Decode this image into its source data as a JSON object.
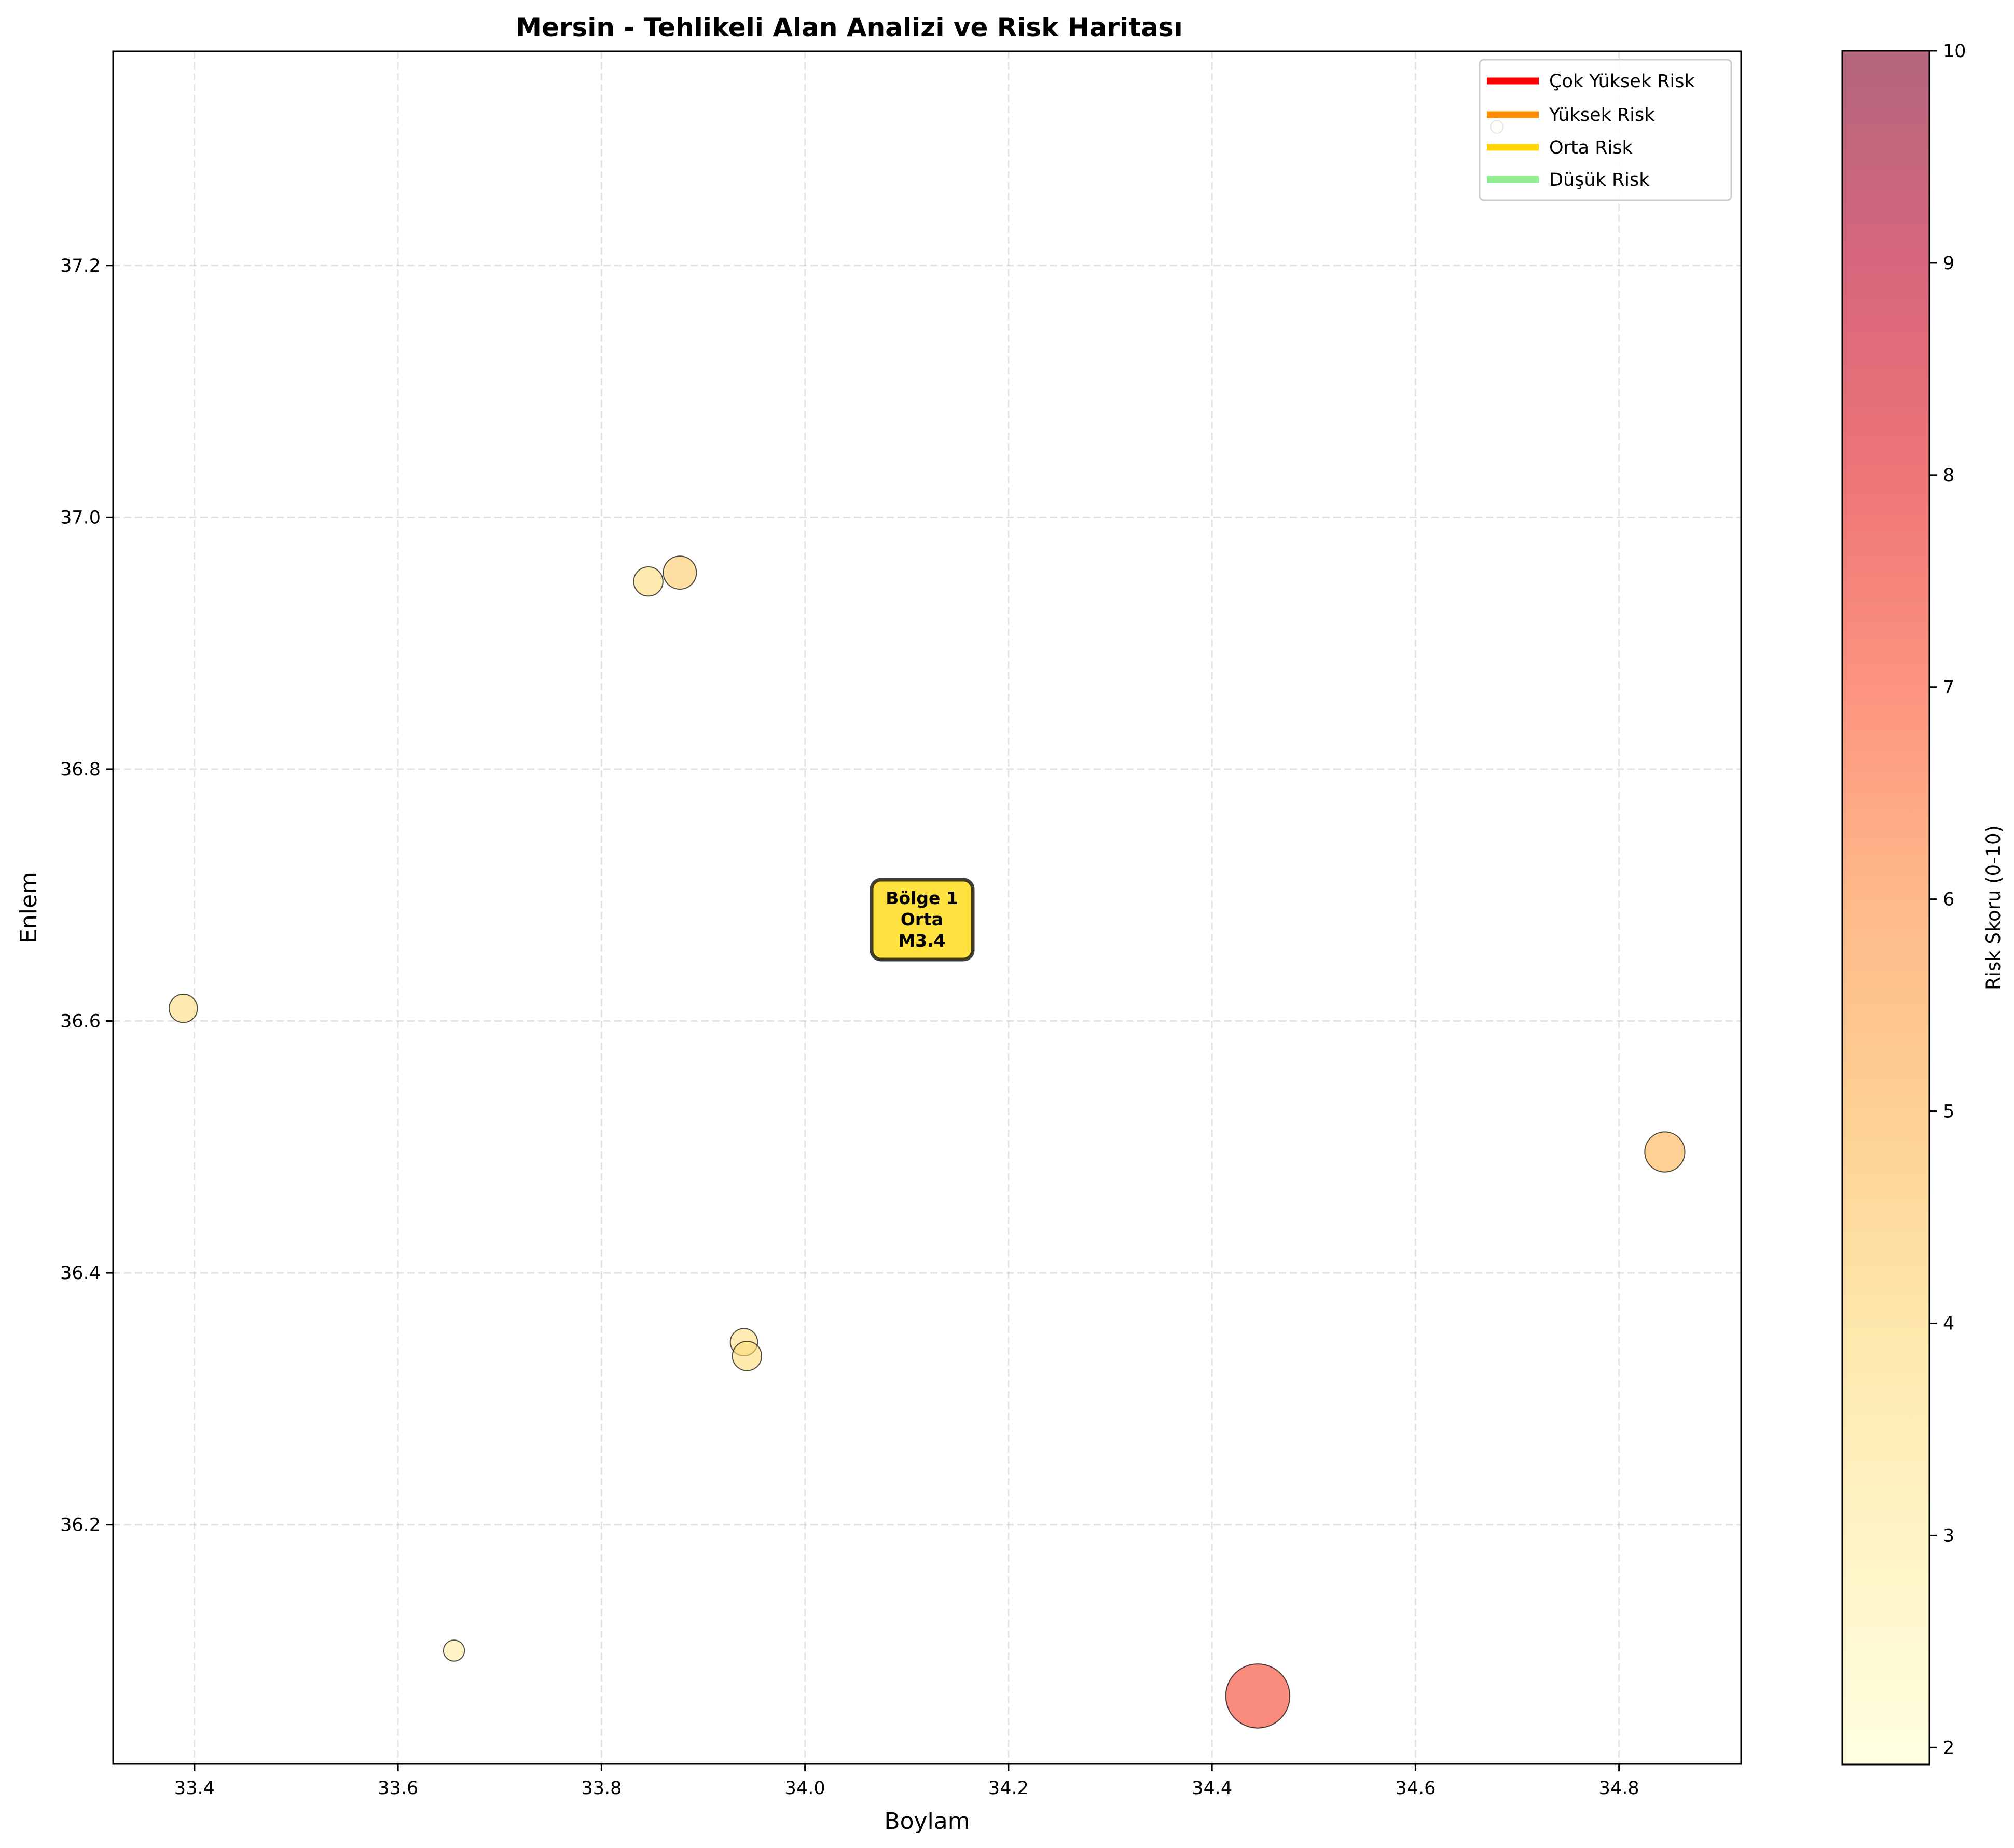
{
  "chart_data": {
    "type": "scatter",
    "title": "Mersin - Tehlikeli Alan Analizi ve Risk Haritası",
    "xlabel": "Boylam",
    "ylabel": "Enlem",
    "xlim": [
      33.32,
      34.92
    ],
    "ylim": [
      36.01,
      37.37
    ],
    "xticks": [
      33.4,
      33.6,
      33.8,
      34.0,
      34.2,
      34.4,
      34.6,
      34.8
    ],
    "xtick_labels": [
      "33.4",
      "33.6",
      "33.8",
      "34.0",
      "34.2",
      "34.4",
      "34.6",
      "34.8"
    ],
    "yticks": [
      36.2,
      36.4,
      36.6,
      36.8,
      37.0,
      37.2
    ],
    "ytick_labels": [
      "36.2",
      "36.4",
      "36.6",
      "36.8",
      "37.0",
      "37.2"
    ],
    "grid": true,
    "legend_position": "top-right",
    "legend": [
      {
        "label": "Çok Yüksek Risk",
        "color": "#ff0000"
      },
      {
        "label": "Yüksek Risk",
        "color": "#ff8c00"
      },
      {
        "label": "Orta Risk",
        "color": "#ffd700"
      },
      {
        "label": "Düşük Risk",
        "color": "#90ee90"
      }
    ],
    "colorbar": {
      "label": "Risk Skoru (0-10)",
      "range": [
        1.92,
        10
      ],
      "ticks": [
        2,
        3,
        4,
        5,
        6,
        7,
        8,
        9,
        10
      ],
      "tick_labels": [
        "2",
        "3",
        "4",
        "5",
        "6",
        "7",
        "8",
        "9",
        "10"
      ],
      "colormap": "YlOrRd"
    },
    "points": [
      {
        "x": 34.68,
        "y": 37.31,
        "risk": 2.0
      },
      {
        "x": 33.877,
        "y": 36.956,
        "risk": 4.3
      },
      {
        "x": 33.846,
        "y": 36.949,
        "risk": 3.9
      },
      {
        "x": 33.389,
        "y": 36.61,
        "risk": 3.8
      },
      {
        "x": 34.845,
        "y": 36.496,
        "risk": 5.0
      },
      {
        "x": 33.94,
        "y": 36.345,
        "risk": 3.7
      },
      {
        "x": 33.943,
        "y": 36.334,
        "risk": 3.9
      },
      {
        "x": 33.655,
        "y": 36.1,
        "risk": 3.0
      },
      {
        "x": 34.445,
        "y": 36.064,
        "risk": 7.3
      }
    ],
    "annotations": [
      {
        "lines": [
          "Bölge 1",
          "Orta",
          "M3.4"
        ],
        "x": 34.11,
        "y": 36.675,
        "box_color": "#ffd700"
      }
    ]
  }
}
